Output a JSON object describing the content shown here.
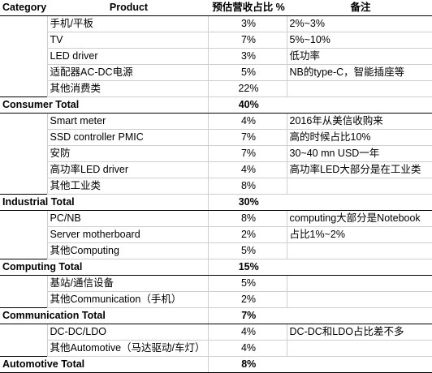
{
  "headers": {
    "category": "Category",
    "product": "Product",
    "revenue_share": "预估营收占比 %",
    "notes": "备注"
  },
  "rows": [
    {
      "type": "item",
      "product": "手机/平板",
      "pct": "3%",
      "note": "2%~3%"
    },
    {
      "type": "item",
      "product": "TV",
      "pct": "7%",
      "note": "5%~10%"
    },
    {
      "type": "item",
      "product": "LED driver",
      "pct": "3%",
      "note": "低功率"
    },
    {
      "type": "item",
      "product": "适配器AC-DC电源",
      "pct": "5%",
      "note": "NB的type-C，智能插座等"
    },
    {
      "type": "item",
      "product": "其他消费类",
      "pct": "22%",
      "note": ""
    },
    {
      "type": "total",
      "label": "Consumer Total",
      "pct": "40%"
    },
    {
      "type": "item",
      "product": "Smart meter",
      "pct": "4%",
      "note": "2016年从美信收购来"
    },
    {
      "type": "item",
      "product": "SSD controller PMIC",
      "pct": "7%",
      "note": "高的时候占比10%"
    },
    {
      "type": "item",
      "product": "安防",
      "pct": "7%",
      "note": "30~40 mn USD一年"
    },
    {
      "type": "item",
      "product": "高功率LED driver",
      "pct": "4%",
      "note": "高功率LED大部分是在工业类"
    },
    {
      "type": "item",
      "product": "其他工业类",
      "pct": "8%",
      "note": ""
    },
    {
      "type": "total",
      "label": "Industrial Total",
      "pct": "30%"
    },
    {
      "type": "item",
      "product": "PC/NB",
      "pct": "8%",
      "note": "computing大部分是Notebook"
    },
    {
      "type": "item",
      "product": "Server motherboard",
      "pct": "2%",
      "note": "占比1%~2%"
    },
    {
      "type": "item",
      "product": "其他Computing",
      "pct": "5%",
      "note": ""
    },
    {
      "type": "total",
      "label": "Computing Total",
      "pct": "15%"
    },
    {
      "type": "item",
      "product": "基站/通信设备",
      "pct": "5%",
      "note": ""
    },
    {
      "type": "item",
      "product": "其他Communication（手机）",
      "pct": "2%",
      "note": ""
    },
    {
      "type": "total",
      "label": "Communication Total",
      "pct": "7%"
    },
    {
      "type": "item",
      "product": "DC-DC/LDO",
      "pct": "4%",
      "note": "DC-DC和LDO占比差不多"
    },
    {
      "type": "item",
      "product": "其他Automotive（马达驱动/车灯）",
      "pct": "4%",
      "note": ""
    },
    {
      "type": "total",
      "label": "Automotive Total",
      "pct": "8%"
    }
  ]
}
